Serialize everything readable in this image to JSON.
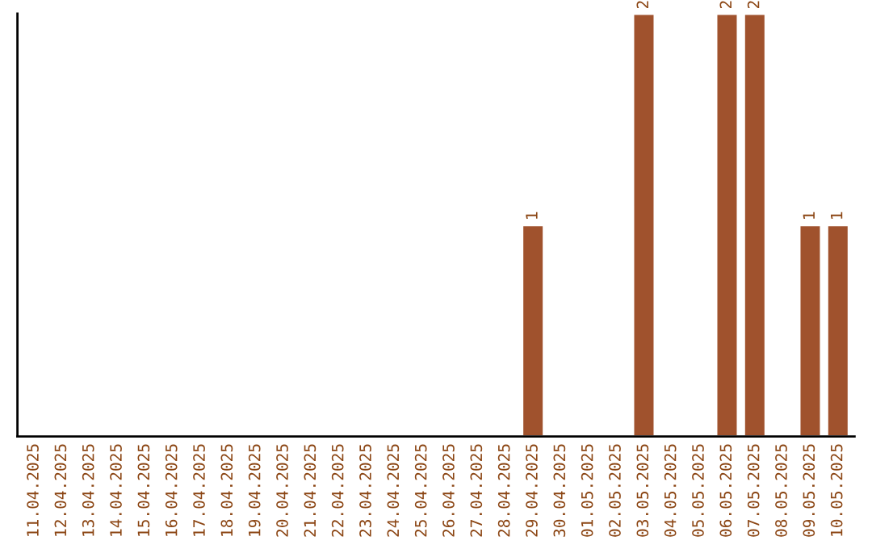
{
  "chart_data": {
    "type": "bar",
    "categories": [
      "11.04.2025",
      "12.04.2025",
      "13.04.2025",
      "14.04.2025",
      "15.04.2025",
      "16.04.2025",
      "17.04.2025",
      "18.04.2025",
      "19.04.2025",
      "20.04.2025",
      "21.04.2025",
      "22.04.2025",
      "23.04.2025",
      "24.04.2025",
      "25.04.2025",
      "26.04.2025",
      "27.04.2025",
      "28.04.2025",
      "29.04.2025",
      "30.04.2025",
      "01.05.2025",
      "02.05.2025",
      "03.05.2025",
      "04.05.2025",
      "05.05.2025",
      "06.05.2025",
      "07.05.2025",
      "08.05.2025",
      "09.05.2025",
      "10.05.2025"
    ],
    "values": [
      null,
      null,
      null,
      null,
      null,
      null,
      null,
      null,
      null,
      null,
      null,
      null,
      null,
      null,
      null,
      null,
      null,
      null,
      1,
      null,
      null,
      null,
      2,
      null,
      null,
      2,
      2,
      null,
      1,
      1
    ],
    "value_labels": [
      null,
      null,
      null,
      null,
      null,
      null,
      null,
      null,
      null,
      null,
      null,
      null,
      null,
      null,
      null,
      null,
      null,
      null,
      "1",
      null,
      null,
      null,
      "2",
      null,
      null,
      "2",
      "2",
      null,
      "1",
      "1"
    ],
    "color": "#a0522d",
    "ylim": [
      0,
      2
    ],
    "tick_labels": "x",
    "grid": false
  }
}
